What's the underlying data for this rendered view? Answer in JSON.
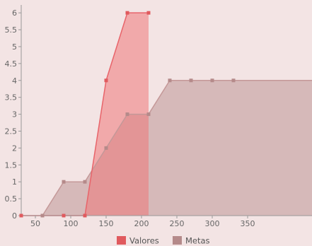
{
  "chart_data": {
    "type": "area",
    "x": [
      30,
      60,
      90,
      120,
      150,
      180,
      210,
      240,
      270,
      300,
      330,
      360
    ],
    "xlim": [
      30,
      441
    ],
    "ylim": [
      0,
      6.15
    ],
    "x_ticks": [
      "50",
      "100",
      "150",
      "200",
      "250",
      "300",
      "350"
    ],
    "x_tick_values": [
      50,
      100,
      150,
      200,
      250,
      300,
      350
    ],
    "y_ticks": [
      "0",
      "0.5",
      "1",
      "1.5",
      "2",
      "2.5",
      "3",
      "3.5",
      "4",
      "4.5",
      "5",
      "5.5",
      "6"
    ],
    "y_tick_values": [
      0,
      0.5,
      1,
      1.5,
      2,
      2.5,
      3,
      3.5,
      4,
      4.5,
      5,
      5.5,
      6
    ],
    "grid": false,
    "legend_position": "bottom",
    "series": [
      {
        "name": "Valores",
        "points": [
          [
            30,
            0
          ],
          [
            90,
            0
          ],
          [
            120,
            0
          ],
          [
            150,
            4
          ],
          [
            180,
            6
          ],
          [
            210,
            6
          ]
        ],
        "line_color": "#e8646a",
        "fill_color": "rgba(238,120,122,0.55)",
        "marker_color": "#e05a5e"
      },
      {
        "name": "Metas",
        "points": [
          [
            60,
            0
          ],
          [
            90,
            1
          ],
          [
            120,
            1
          ],
          [
            150,
            2
          ],
          [
            180,
            3
          ],
          [
            210,
            3
          ],
          [
            240,
            4
          ],
          [
            270,
            4
          ],
          [
            300,
            4
          ],
          [
            330,
            4
          ],
          [
            360,
            4
          ],
          [
            441,
            4
          ]
        ],
        "marker_points": [
          [
            60,
            0
          ],
          [
            90,
            1
          ],
          [
            120,
            1
          ],
          [
            150,
            2
          ],
          [
            180,
            3
          ],
          [
            210,
            3
          ],
          [
            240,
            4
          ],
          [
            270,
            4
          ],
          [
            300,
            4
          ],
          [
            330,
            4
          ]
        ],
        "line_color": "#c49898",
        "fill_color": "rgba(190,150,150,0.55)",
        "marker_color": "#b58a8a"
      }
    ]
  }
}
